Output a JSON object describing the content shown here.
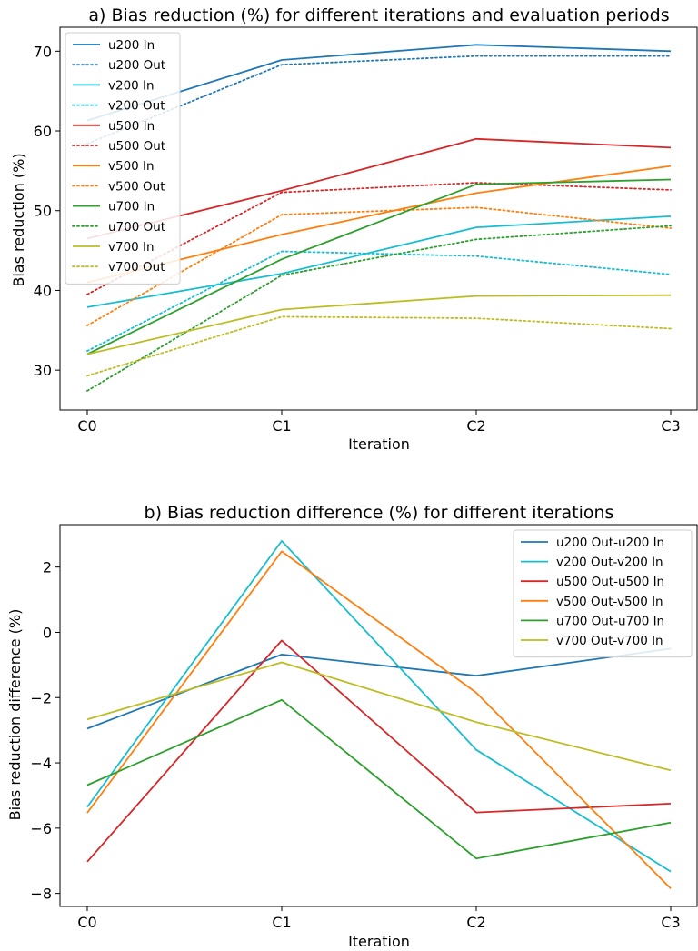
{
  "chart_data": [
    {
      "type": "line",
      "title": "a) Bias reduction (%) for different iterations and evaluation periods",
      "xlabel": "Iteration",
      "ylabel": "Bias reduction (%)",
      "categories": [
        "C0",
        "C1",
        "C2",
        "C3"
      ],
      "ylim": [
        25,
        73
      ],
      "yticks": [
        30,
        40,
        50,
        60,
        70
      ],
      "grid": false,
      "legend_position": "top-left",
      "series": [
        {
          "name": "u200 In",
          "color": "#1f77b4",
          "style": "solid",
          "values": [
            61.3,
            68.9,
            70.8,
            70.0
          ]
        },
        {
          "name": "u200 Out",
          "color": "#1f77b4",
          "style": "dotted",
          "values": [
            58.4,
            68.3,
            69.4,
            69.4
          ]
        },
        {
          "name": "v200 In",
          "color": "#17becf",
          "style": "solid",
          "values": [
            37.9,
            42.1,
            47.9,
            49.3
          ]
        },
        {
          "name": "v200 Out",
          "color": "#17becf",
          "style": "dotted",
          "values": [
            32.4,
            44.9,
            44.3,
            42.0
          ]
        },
        {
          "name": "u500 In",
          "color": "#d62728",
          "style": "solid",
          "values": [
            46.5,
            52.5,
            59.0,
            57.9
          ]
        },
        {
          "name": "u500 Out",
          "color": "#d62728",
          "style": "dotted",
          "values": [
            39.5,
            52.3,
            53.5,
            52.6
          ]
        },
        {
          "name": "v500 In",
          "color": "#ff7f0e",
          "style": "solid",
          "values": [
            41.0,
            47.0,
            52.2,
            55.6
          ]
        },
        {
          "name": "v500 Out",
          "color": "#ff7f0e",
          "style": "dotted",
          "values": [
            35.6,
            49.5,
            50.4,
            47.8
          ]
        },
        {
          "name": "u700 In",
          "color": "#2ca02c",
          "style": "solid",
          "values": [
            32.0,
            43.9,
            53.3,
            53.9
          ]
        },
        {
          "name": "u700 Out",
          "color": "#2ca02c",
          "style": "dotted",
          "values": [
            27.4,
            41.9,
            46.4,
            48.1
          ]
        },
        {
          "name": "v700 In",
          "color": "#bcbd22",
          "style": "solid",
          "values": [
            32.0,
            37.6,
            39.3,
            39.4
          ]
        },
        {
          "name": "v700 Out",
          "color": "#bcbd22",
          "style": "dotted",
          "values": [
            29.3,
            36.7,
            36.5,
            35.2
          ]
        }
      ]
    },
    {
      "type": "line",
      "title": "b) Bias reduction difference (%) for different iterations",
      "xlabel": "Iteration",
      "ylabel": "Bias reduction difference (%)",
      "categories": [
        "C0",
        "C1",
        "C2",
        "C3"
      ],
      "ylim": [
        -8.4,
        3.3
      ],
      "yticks": [
        -8,
        -6,
        -4,
        -2,
        0,
        2
      ],
      "grid": false,
      "legend_position": "top-right",
      "series": [
        {
          "name": "u200 Out-u200 In",
          "color": "#1f77b4",
          "style": "solid",
          "values": [
            -2.95,
            -0.68,
            -1.33,
            -0.5
          ]
        },
        {
          "name": "v200 Out-v200 In",
          "color": "#17becf",
          "style": "solid",
          "values": [
            -5.35,
            2.8,
            -3.6,
            -7.33
          ]
        },
        {
          "name": "u500 Out-u500 In",
          "color": "#d62728",
          "style": "solid",
          "values": [
            -7.03,
            -0.25,
            -5.52,
            -5.25
          ]
        },
        {
          "name": "v500 Out-v500 In",
          "color": "#ff7f0e",
          "style": "solid",
          "values": [
            -5.53,
            2.48,
            -1.85,
            -7.85
          ]
        },
        {
          "name": "u700 Out-u700 In",
          "color": "#2ca02c",
          "style": "solid",
          "values": [
            -4.68,
            -2.07,
            -6.93,
            -5.83
          ]
        },
        {
          "name": "v700 Out-v700 In",
          "color": "#bcbd22",
          "style": "solid",
          "values": [
            -2.67,
            -0.92,
            -2.75,
            -4.23
          ]
        }
      ]
    }
  ]
}
